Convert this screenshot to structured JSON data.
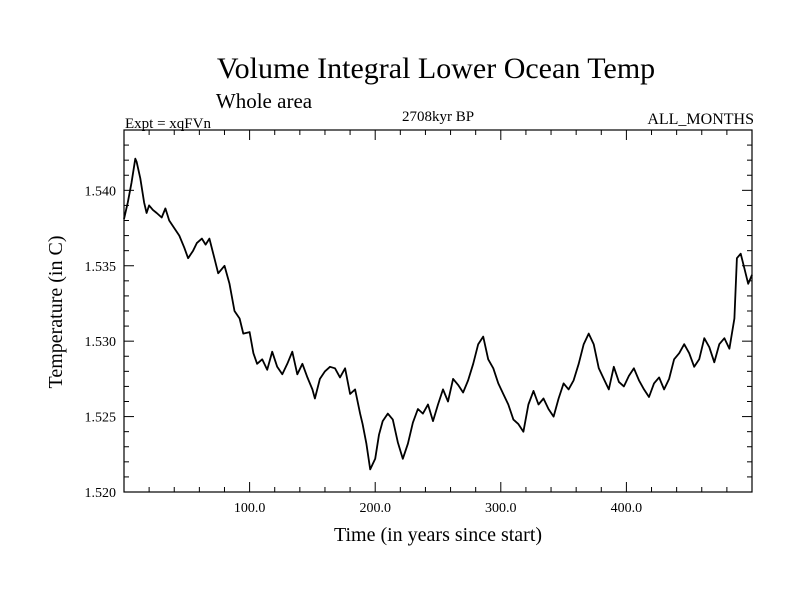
{
  "chart_data": {
    "type": "line",
    "title": "Volume Integral Lower Ocean Temp",
    "subtitle": "Whole area",
    "experiment_label": "Expt = xqFVn",
    "period_label": "2708kyr BP",
    "months_label": "ALL_MONTHS",
    "xlabel": "Time (in years since start)",
    "ylabel": "Temperature (in C)",
    "xlim": [
      0,
      500
    ],
    "ylim": [
      1.52,
      1.544
    ],
    "x_ticks": [
      {
        "value": 100,
        "label": "100.0"
      },
      {
        "value": 200,
        "label": "200.0"
      },
      {
        "value": 300,
        "label": "300.0"
      },
      {
        "value": 400,
        "label": "400.0"
      }
    ],
    "y_ticks": [
      {
        "value": 1.52,
        "label": "1.520"
      },
      {
        "value": 1.525,
        "label": "1.525"
      },
      {
        "value": 1.53,
        "label": "1.530"
      },
      {
        "value": 1.535,
        "label": "1.535"
      },
      {
        "value": 1.54,
        "label": "1.540"
      }
    ],
    "grid": false,
    "series": [
      {
        "name": "Volume Integral Lower Ocean Temp",
        "x": [
          0,
          3,
          6,
          9,
          10,
          13,
          16,
          18,
          20,
          23,
          26,
          30,
          33,
          36,
          40,
          44,
          48,
          51,
          55,
          58,
          62,
          65,
          68,
          72,
          75,
          80,
          84,
          88,
          92,
          95,
          100,
          103,
          106,
          110,
          114,
          118,
          122,
          126,
          130,
          134,
          138,
          142,
          146,
          150,
          152,
          156,
          160,
          164,
          168,
          172,
          176,
          180,
          184,
          188,
          190,
          193,
          196,
          200,
          203,
          206,
          210,
          214,
          218,
          222,
          226,
          230,
          234,
          238,
          242,
          246,
          250,
          254,
          258,
          262,
          266,
          270,
          274,
          278,
          282,
          286,
          290,
          294,
          298,
          302,
          306,
          310,
          314,
          318,
          322,
          326,
          330,
          334,
          338,
          342,
          346,
          350,
          354,
          358,
          362,
          366,
          370,
          374,
          378,
          382,
          386,
          390,
          394,
          398,
          402,
          406,
          410,
          414,
          418,
          422,
          426,
          430,
          434,
          438,
          442,
          446,
          450,
          454,
          458,
          462,
          466,
          470,
          474,
          478,
          482,
          486,
          488,
          491,
          494,
          497,
          500
        ],
        "values": [
          1.5381,
          1.5392,
          1.5405,
          1.5421,
          1.5419,
          1.5408,
          1.5392,
          1.5385,
          1.539,
          1.5387,
          1.5385,
          1.5382,
          1.5388,
          1.538,
          1.5375,
          1.537,
          1.5362,
          1.5355,
          1.536,
          1.5365,
          1.5368,
          1.5364,
          1.5368,
          1.5355,
          1.5345,
          1.535,
          1.5338,
          1.532,
          1.5315,
          1.5305,
          1.5306,
          1.5292,
          1.5285,
          1.5288,
          1.5281,
          1.5293,
          1.5283,
          1.5278,
          1.5285,
          1.5293,
          1.5278,
          1.5285,
          1.5276,
          1.5268,
          1.5262,
          1.5275,
          1.528,
          1.5283,
          1.5282,
          1.5276,
          1.5282,
          1.5265,
          1.5268,
          1.5252,
          1.5245,
          1.5232,
          1.5215,
          1.5222,
          1.5238,
          1.5247,
          1.5252,
          1.5248,
          1.5233,
          1.5222,
          1.5232,
          1.5246,
          1.5255,
          1.5252,
          1.5258,
          1.5247,
          1.5258,
          1.5268,
          1.526,
          1.5275,
          1.5271,
          1.5266,
          1.5274,
          1.5285,
          1.5298,
          1.5303,
          1.5288,
          1.5282,
          1.5272,
          1.5265,
          1.5258,
          1.5248,
          1.5245,
          1.524,
          1.5258,
          1.5267,
          1.5258,
          1.5262,
          1.5255,
          1.525,
          1.5262,
          1.5272,
          1.5268,
          1.5274,
          1.5285,
          1.5298,
          1.5305,
          1.5298,
          1.5282,
          1.5275,
          1.5268,
          1.5283,
          1.5273,
          1.527,
          1.5277,
          1.5282,
          1.5274,
          1.5268,
          1.5263,
          1.5272,
          1.5276,
          1.5268,
          1.5275,
          1.5288,
          1.5292,
          1.5298,
          1.5292,
          1.5283,
          1.5288,
          1.5302,
          1.5296,
          1.5286,
          1.5298,
          1.5302,
          1.5295,
          1.5315,
          1.5355,
          1.5358,
          1.5348,
          1.5338,
          1.5344
        ]
      }
    ]
  }
}
